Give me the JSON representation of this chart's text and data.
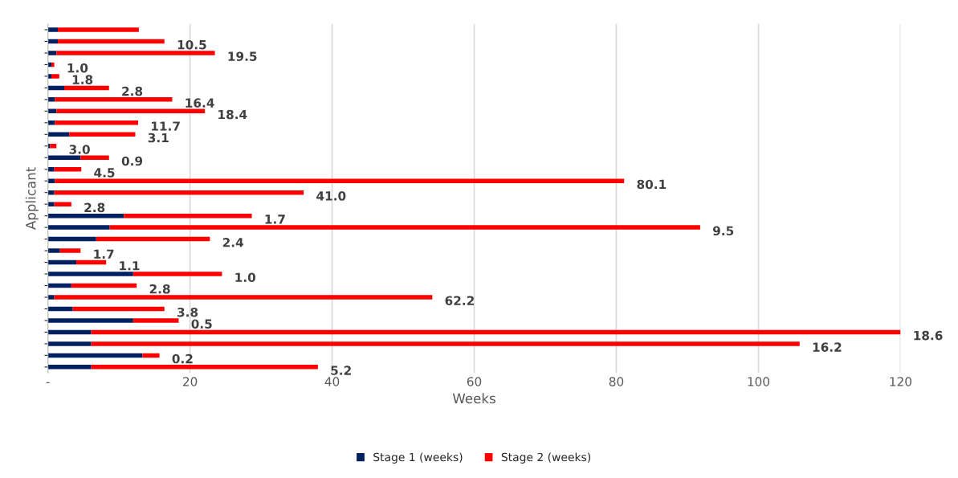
{
  "chart_data": {
    "type": "bar",
    "orientation": "horizontal",
    "stacked": true,
    "xlabel": "Weeks",
    "ylabel": "Applicant",
    "categories": [
      null,
      null,
      null,
      null,
      null,
      null,
      null,
      null,
      null,
      null,
      null,
      null,
      null,
      null,
      null,
      null,
      null,
      null,
      null,
      null,
      null,
      null,
      null,
      null,
      null,
      null,
      null,
      null,
      null,
      null
    ],
    "series": [
      {
        "name": "Stage 1 (weeks)",
        "color": "#002060",
        "values": [
          1.4,
          1.4,
          1.2,
          0.5,
          0.5,
          2.3,
          1.0,
          1.2,
          1.0,
          3.0,
          0.3,
          4.6,
          0.9,
          1.0,
          0.9,
          0.9,
          10.7,
          8.7,
          6.8,
          1.7,
          4.0,
          12.0,
          3.3,
          0.9,
          3.5,
          12.0,
          6.1,
          6.1,
          13.3,
          6.1
        ]
      },
      {
        "name": "Stage 2 (weeks)",
        "color": "#ff0000",
        "values": [
          11.4,
          15.0,
          22.3,
          0.4,
          1.1,
          6.3,
          16.5,
          20.9,
          11.7,
          9.3,
          0.9,
          4.0,
          3.8,
          80.1,
          35.1,
          2.4,
          18.0,
          83.1,
          16.0,
          2.9,
          4.2,
          12.5,
          9.2,
          53.2,
          12.9,
          6.4,
          113.9,
          99.7,
          2.4,
          31.9
        ]
      }
    ],
    "annotations": [
      "10.5",
      "19.5",
      "1.0",
      "1.8",
      "2.8",
      "16.4",
      "18.4",
      "11.7",
      "3.1",
      "3.0",
      "0.9",
      "4.5",
      "80.1",
      "41.0",
      "2.8",
      "1.7",
      "9.5",
      "2.4",
      "1.7",
      "1.1",
      "1.0",
      "2.8",
      "62.2",
      "3.8",
      "0.5",
      "18.6",
      "16.2",
      "0.2",
      "5.2"
    ],
    "xlim": [
      0,
      120
    ],
    "xticks": [
      {
        "value": 0,
        "label": "-"
      },
      20,
      40,
      60,
      80,
      100,
      120
    ],
    "grid": "x",
    "legend": "bottom"
  }
}
